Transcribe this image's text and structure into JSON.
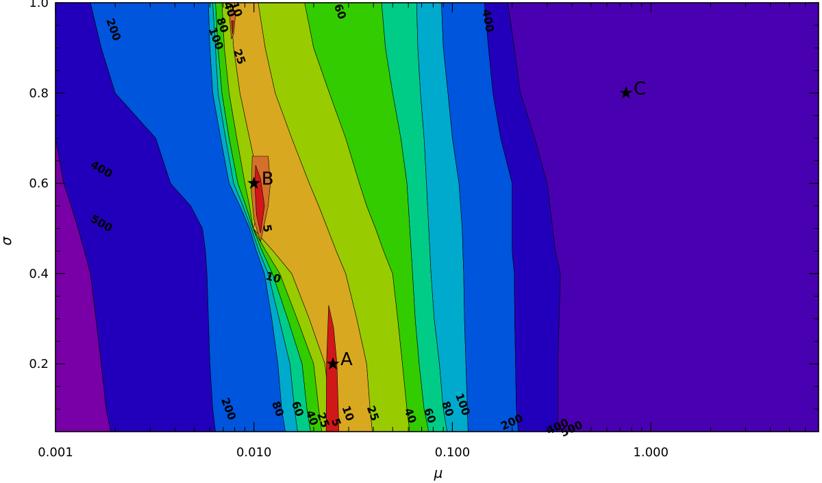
{
  "chart_data": {
    "type": "contour",
    "xlabel": "μ",
    "ylabel": "σ",
    "x_scale": "log",
    "xlim": [
      0.001,
      7.0
    ],
    "ylim": [
      0.05,
      1.0
    ],
    "x_tick_labels": [
      "0.001",
      "0.010",
      "0.100",
      "1.000"
    ],
    "x_tick_values": [
      0.001,
      0.01,
      0.1,
      1.0
    ],
    "y_tick_labels": [
      "0.2",
      "0.4",
      "0.6",
      "0.8",
      "1.0"
    ],
    "y_tick_values": [
      0.2,
      0.4,
      0.6,
      0.8,
      1.0
    ],
    "levels": [
      5,
      10,
      25,
      40,
      60,
      80,
      100,
      200,
      400,
      500
    ],
    "band_colors": [
      "#d01818",
      "#d4702a",
      "#d8a820",
      "#98cc00",
      "#33cc00",
      "#00cc88",
      "#00aacc",
      "#0055dd",
      "#2200bb",
      "#4800b0",
      "#7800a6"
    ],
    "contour_labels": [
      {
        "text": "5",
        "x": 0.0116,
        "y": 0.5
      },
      {
        "text": "10",
        "x": 0.0125,
        "y": 0.39
      },
      {
        "text": "25",
        "x": 0.0084,
        "y": 0.88
      },
      {
        "text": "60",
        "x": 0.027,
        "y": 0.98
      },
      {
        "text": "200",
        "x": 0.00195,
        "y": 0.94
      },
      {
        "text": "400",
        "x": 0.15,
        "y": 0.96
      },
      {
        "text": "400",
        "x": 0.0017,
        "y": 0.63
      },
      {
        "text": "500",
        "x": 0.0017,
        "y": 0.51
      },
      {
        "text": "100",
        "x": 0.0064,
        "y": 0.92
      },
      {
        "text": "80",
        "x": 0.0069,
        "y": 0.95
      },
      {
        "text": "40",
        "x": 0.0075,
        "y": 0.985
      },
      {
        "text": "10",
        "x": 0.0081,
        "y": 0.985
      },
      {
        "text": "200",
        "x": 0.0074,
        "y": 0.1
      },
      {
        "text": "80",
        "x": 0.0131,
        "y": 0.1
      },
      {
        "text": "60",
        "x": 0.0165,
        "y": 0.1
      },
      {
        "text": "40",
        "x": 0.0195,
        "y": 0.08
      },
      {
        "text": "25",
        "x": 0.0222,
        "y": 0.075
      },
      {
        "text": "5",
        "x": 0.0258,
        "y": 0.07
      },
      {
        "text": "10",
        "x": 0.0296,
        "y": 0.09
      },
      {
        "text": "25",
        "x": 0.0395,
        "y": 0.09
      },
      {
        "text": "40",
        "x": 0.061,
        "y": 0.085
      },
      {
        "text": "60",
        "x": 0.0765,
        "y": 0.085
      },
      {
        "text": "80",
        "x": 0.094,
        "y": 0.1
      },
      {
        "text": "100",
        "x": 0.112,
        "y": 0.11
      },
      {
        "text": "200",
        "x": 0.2,
        "y": 0.07
      },
      {
        "text": "400",
        "x": 0.34,
        "y": 0.06
      },
      {
        "text": "500",
        "x": 0.4,
        "y": 0.055
      }
    ],
    "markers": [
      {
        "label": "A",
        "x": 0.025,
        "y": 0.2
      },
      {
        "label": "B",
        "x": 0.01,
        "y": 0.6
      },
      {
        "label": "C",
        "x": 0.75,
        "y": 0.8
      }
    ]
  }
}
